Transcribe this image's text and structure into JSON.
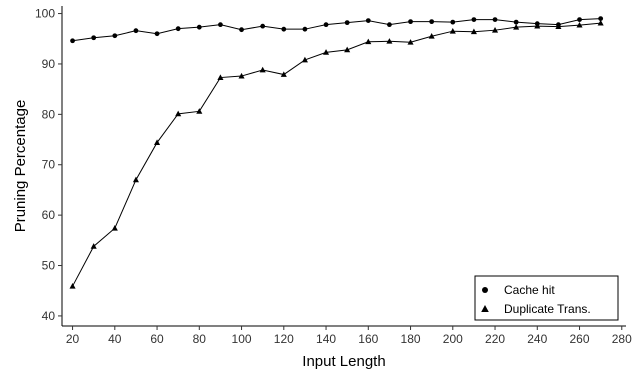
{
  "chart_data": {
    "type": "line",
    "title": "",
    "xlabel": "Input Length",
    "ylabel": "Pruning Percentage",
    "xlim": [
      15,
      282
    ],
    "ylim": [
      38,
      101.5
    ],
    "xticks": [
      20,
      40,
      60,
      80,
      100,
      120,
      140,
      160,
      180,
      200,
      220,
      240,
      260,
      280
    ],
    "yticks": [
      40,
      50,
      60,
      70,
      80,
      90,
      100
    ],
    "grid": false,
    "legend_position": "bottom-right",
    "x": [
      20,
      30,
      40,
      50,
      60,
      70,
      80,
      90,
      100,
      110,
      120,
      130,
      140,
      150,
      160,
      170,
      180,
      190,
      200,
      210,
      220,
      230,
      240,
      250,
      260,
      270
    ],
    "series": [
      {
        "name": "Cache hit",
        "marker": "circle",
        "values": [
          94.6,
          95.2,
          95.6,
          96.6,
          96.0,
          97.0,
          97.3,
          97.8,
          96.8,
          97.5,
          96.9,
          96.9,
          97.8,
          98.2,
          98.6,
          97.8,
          98.4,
          98.4,
          98.3,
          98.8,
          98.8,
          98.3,
          98.0,
          97.8,
          98.8,
          99.0
        ]
      },
      {
        "name": "Duplicate Trans.",
        "marker": "triangle",
        "values": [
          45.9,
          53.8,
          57.4,
          67.0,
          74.4,
          80.1,
          80.6,
          87.3,
          87.6,
          88.8,
          87.9,
          90.8,
          92.3,
          92.8,
          94.4,
          94.5,
          94.3,
          95.5,
          96.5,
          96.4,
          96.7,
          97.3,
          97.5,
          97.4,
          97.7,
          98.1
        ]
      }
    ]
  }
}
